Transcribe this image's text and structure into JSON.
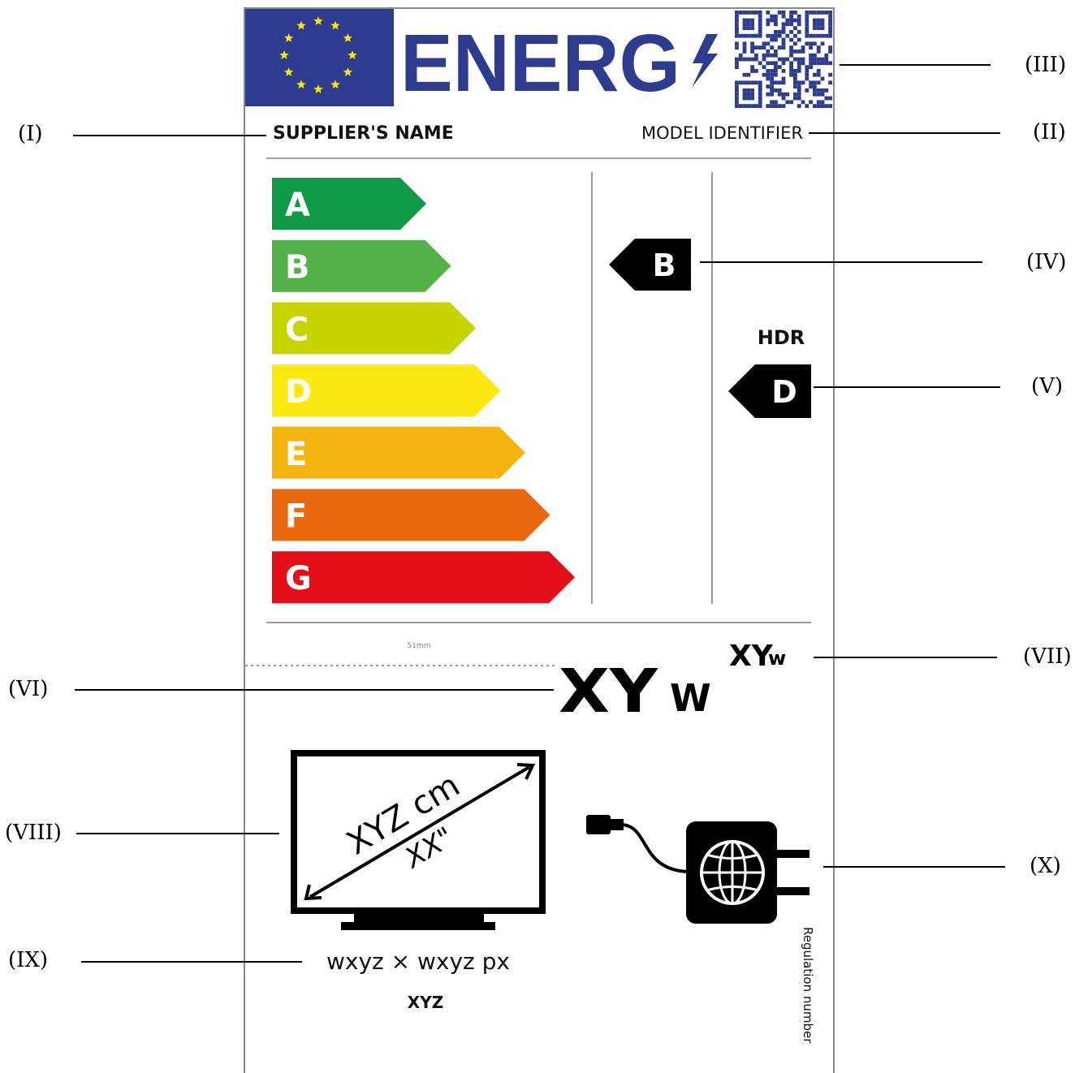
{
  "label": {
    "brand_word": "ENERG",
    "supplier_name": "SUPPLIER'S NAME",
    "model_identifier": "MODEL IDENTIFIER",
    "scale_classes": [
      {
        "letter": "A",
        "color": "#0f9a48"
      },
      {
        "letter": "B",
        "color": "#53b147"
      },
      {
        "letter": "C",
        "color": "#c8d400"
      },
      {
        "letter": "D",
        "color": "#fde910"
      },
      {
        "letter": "E",
        "color": "#f6b50e"
      },
      {
        "letter": "F",
        "color": "#ea680c"
      },
      {
        "letter": "G",
        "color": "#e30e17"
      }
    ],
    "sdr_class": "B",
    "hdr_label": "HDR",
    "hdr_class": "D",
    "dimension_note": "51mm",
    "hdr_power_value": "XY",
    "hdr_power_unit": "W",
    "sdr_power_value": "XY",
    "sdr_power_unit": "W",
    "diagonal_cm": "XYZ cm",
    "diagonal_inch": "XX\"",
    "resolution": "wxyz × wxyz px",
    "regulation_code": "XYZ",
    "regulation_text": "Regulation number",
    "colors": {
      "eu_blue": "#2d3c8e",
      "eu_star": "#ffe600",
      "energy_blue": "#2d3c8e",
      "rule_gray": "#9a9a9a"
    }
  },
  "callouts": {
    "i": "(I)",
    "ii": "(II)",
    "iii": "(III)",
    "iv": "(IV)",
    "v": "(V)",
    "vi": "(VI)",
    "vii": "(VII)",
    "viii": "(VIII)",
    "ix": "(IX)",
    "x": "(X)"
  }
}
